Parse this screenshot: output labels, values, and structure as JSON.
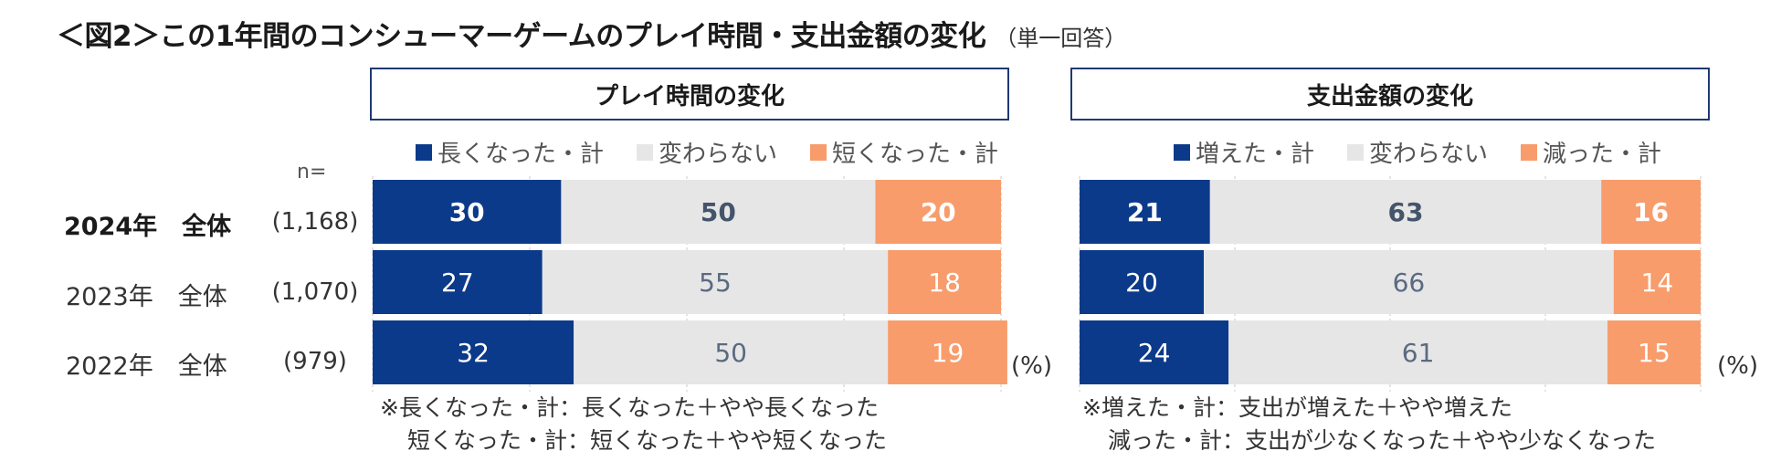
{
  "title": {
    "main": "＜図2＞この1年間のコンシューマーゲームのプレイ時間・支出金額の変化",
    "sub": "（単一回答）"
  },
  "n_label": "n=",
  "rows": [
    {
      "label": "2024年　全体",
      "n": "(1,168)",
      "bold": true
    },
    {
      "label": "2023年　全体",
      "n": "(1,070)",
      "bold": false
    },
    {
      "label": "2022年　全体",
      "n": "(979)",
      "bold": false
    }
  ],
  "unit": "(%)",
  "colors": {
    "navy": "#0c3a8a",
    "gray": "#e6e6e6",
    "orange": "#f89c6c",
    "border": "#1f3a73"
  },
  "chart_data": [
    {
      "type": "bar",
      "orientation": "horizontal-stacked",
      "title": "プレイ時間の変化",
      "categories": [
        "2024年　全体",
        "2023年　全体",
        "2022年　全体"
      ],
      "series": [
        {
          "name": "長くなった・計",
          "values": [
            30,
            27,
            32
          ],
          "color": "#0c3a8a"
        },
        {
          "name": "変わらない",
          "values": [
            50,
            55,
            50
          ],
          "color": "#e6e6e6"
        },
        {
          "name": "短くなった・計",
          "values": [
            20,
            18,
            19
          ],
          "color": "#f89c6c"
        }
      ],
      "xlim": [
        0,
        100
      ],
      "legend_position": "top",
      "note": [
        "※長くなった・計：長くなった＋やや長くなった",
        "短くなった・計：短くなった＋やや短くなった"
      ]
    },
    {
      "type": "bar",
      "orientation": "horizontal-stacked",
      "title": "支出金額の変化",
      "categories": [
        "2024年　全体",
        "2023年　全体",
        "2022年　全体"
      ],
      "series": [
        {
          "name": "増えた・計",
          "values": [
            21,
            20,
            24
          ],
          "color": "#0c3a8a"
        },
        {
          "name": "変わらない",
          "values": [
            63,
            66,
            61
          ],
          "color": "#e6e6e6"
        },
        {
          "name": "減った・計",
          "values": [
            16,
            14,
            15
          ],
          "color": "#f89c6c"
        }
      ],
      "xlim": [
        0,
        100
      ],
      "legend_position": "top",
      "note": [
        "※増えた・計：支出が増えた＋やや増えた",
        "減った・計：支出が少なくなった＋やや少なくなった"
      ]
    }
  ]
}
